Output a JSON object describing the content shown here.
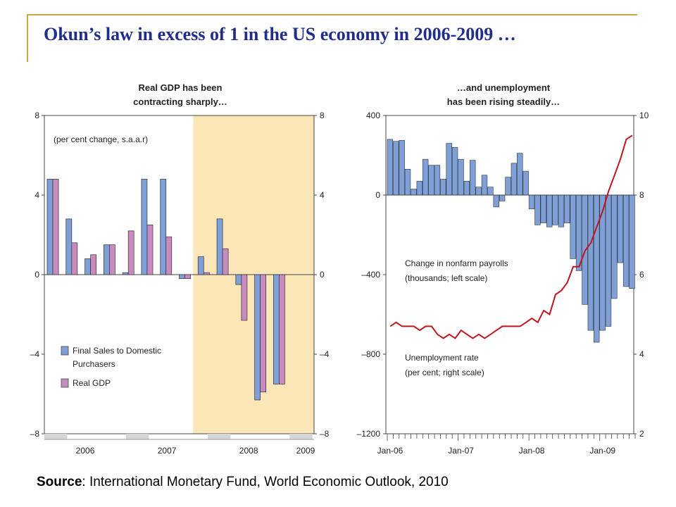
{
  "slide": {
    "title": "Okun’s law in excess of 1 in the US economy in 2006-2009 …",
    "source_label": "Source",
    "source_text": ": International Monetary Fund, World Economic Outlook, 2010"
  },
  "colors": {
    "accent_rule": "#c8a84a",
    "title": "#1f2d8c",
    "bar_blue": "#7f9fd9",
    "bar_pink": "#c78bc0",
    "shade": "#fbe6b8",
    "line_red": "#c0161b"
  },
  "chart_data": [
    {
      "type": "bar",
      "title_lines": [
        "Real GDP has been",
        "contracting sharply…"
      ],
      "annotation": "(per cent change, s.a.a.r)",
      "ylim": [
        -8,
        8
      ],
      "yticks": [
        "8",
        "4",
        "0",
        "–4",
        "–8"
      ],
      "ytick_values": [
        8,
        4,
        0,
        -4,
        -8
      ],
      "xtick_labels": [
        "2006",
        "2007",
        "2008",
        "2009"
      ],
      "shaded_from_quarter": 8,
      "legend_placement": "bottom-left",
      "categories": [
        "2006Q1",
        "2006Q2",
        "2006Q3",
        "2006Q4",
        "2007Q1",
        "2007Q2",
        "2007Q3",
        "2007Q4",
        "2008Q1",
        "2008Q2",
        "2008Q3",
        "2008Q4",
        "2009Q1",
        "2009Q2"
      ],
      "series": [
        {
          "name": "Final Sales to Domestic Purchasers",
          "name_lines": [
            "Final Sales to Domestic",
            "Purchasers"
          ],
          "color": "#7f9fd9",
          "values": [
            4.8,
            2.8,
            0.8,
            1.5,
            0.1,
            4.8,
            4.8,
            -0.2,
            0.9,
            2.8,
            -0.5,
            -6.3,
            -5.5,
            null
          ]
        },
        {
          "name": "Real GDP",
          "name_lines": [
            "Real GDP"
          ],
          "color": "#c78bc0",
          "values": [
            4.8,
            1.6,
            1.0,
            1.5,
            2.2,
            2.5,
            1.9,
            -0.2,
            0.1,
            1.3,
            -2.3,
            -5.9,
            -5.5,
            null
          ]
        }
      ]
    },
    {
      "type": "bar+line",
      "title_lines": [
        "…and unemployment",
        "has been rising steadily…"
      ],
      "ylim_left": [
        -1200,
        400
      ],
      "yticks_left": [
        "400",
        "0",
        "–400",
        "–800",
        "–1200"
      ],
      "ytick_values_left": [
        400,
        0,
        -400,
        -800,
        -1200
      ],
      "ylim_right": [
        2,
        10
      ],
      "yticks_right": [
        "10",
        "8",
        "6",
        "4",
        "2"
      ],
      "ytick_values_right": [
        10,
        8,
        6,
        4,
        2
      ],
      "xtick_labels": [
        "Jan-06",
        "Jan-07",
        "Jan-08",
        "Jan-09"
      ],
      "months": 42,
      "series": [
        {
          "name": "Change in nonfarm payrolls (thousands; left scale)",
          "name_lines": [
            "Change in nonfarm payrolls",
            "(thousands; left scale)"
          ],
          "kind": "bar",
          "color": "#7f9fd9",
          "values": [
            280,
            270,
            275,
            130,
            30,
            70,
            180,
            150,
            150,
            80,
            260,
            240,
            180,
            70,
            175,
            40,
            100,
            40,
            -60,
            -30,
            90,
            160,
            210,
            120,
            -70,
            -150,
            -140,
            -160,
            -150,
            -160,
            -140,
            -320,
            -380,
            -550,
            -680,
            -740,
            -680,
            -660,
            -520,
            -340,
            -460,
            -470
          ]
        },
        {
          "name": "Unemployment rate (per cent; right scale)",
          "name_lines": [
            "Unemployment rate",
            "(per cent; right scale)"
          ],
          "kind": "line",
          "color": "#c0161b",
          "values": [
            4.7,
            4.8,
            4.7,
            4.7,
            4.7,
            4.6,
            4.7,
            4.7,
            4.5,
            4.4,
            4.5,
            4.4,
            4.6,
            4.5,
            4.4,
            4.5,
            4.4,
            4.5,
            4.6,
            4.7,
            4.7,
            4.7,
            4.7,
            4.8,
            4.9,
            4.8,
            5.1,
            5.0,
            5.5,
            5.6,
            5.8,
            6.2,
            6.2,
            6.6,
            6.8,
            7.2,
            7.6,
            8.1,
            8.5,
            8.9,
            9.4,
            9.5
          ]
        }
      ]
    }
  ]
}
